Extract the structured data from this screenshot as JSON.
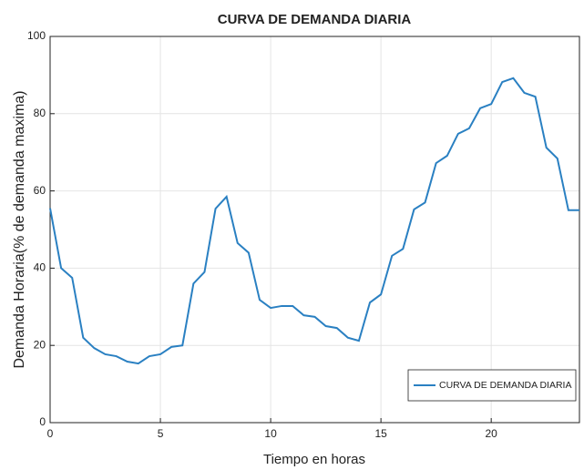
{
  "chart_data": {
    "type": "line",
    "title": "CURVA DE DEMANDA DIARIA",
    "xlabel": "Tiempo en horas",
    "ylabel": "Demanda Horaria(% de demanda maxima)",
    "x": [
      0,
      0.5,
      1,
      1.5,
      2,
      2.5,
      3,
      3.5,
      4,
      4.5,
      5,
      5.5,
      6,
      6.5,
      7,
      7.5,
      8,
      8.5,
      9,
      9.5,
      10,
      10.5,
      11,
      11.5,
      12,
      12.5,
      13,
      13.5,
      14,
      14.5,
      15,
      15.5,
      16,
      16.5,
      17,
      17.5,
      18,
      18.5,
      19,
      19.5,
      20,
      20.5,
      21,
      21.5,
      22,
      22.5,
      23,
      23.5,
      24
    ],
    "series": [
      {
        "name": "CURVA DE DEMANDA DIARIA",
        "color": "#2a80c2",
        "values": [
          55.5,
          40,
          37.5,
          22,
          19.3,
          17.7,
          17.2,
          15.8,
          15.3,
          17.2,
          17.7,
          19.6,
          20,
          36,
          39,
          55.4,
          58.5,
          46.5,
          44,
          31.8,
          29.7,
          30.2,
          30.2,
          27.8,
          27.4,
          25,
          24.5,
          22,
          21.2,
          31.1,
          33.2,
          43.2,
          45,
          55.2,
          57,
          67.2,
          69.1,
          74.8,
          76.2,
          81.4,
          82.5,
          88.2,
          89.2,
          85.4,
          84.4,
          71.2,
          68.4,
          55,
          55
        ]
      }
    ],
    "xlim": [
      0,
      24
    ],
    "xticks": [
      0,
      5,
      10,
      15,
      20
    ],
    "ylim": [
      0,
      100
    ],
    "yticks": [
      0,
      20,
      40,
      60,
      80,
      100
    ],
    "grid": true,
    "legend": "lower right"
  }
}
